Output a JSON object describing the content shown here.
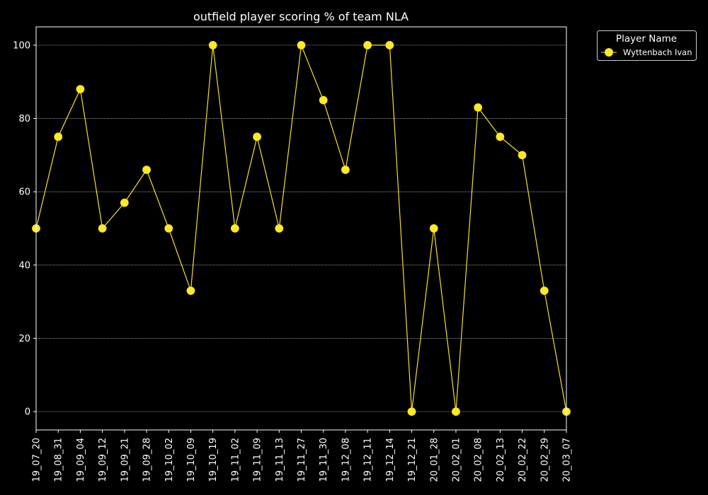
{
  "chart_data": {
    "type": "line",
    "title": "outfield player scoring % of team NLA",
    "xlabel": "",
    "ylabel": "",
    "categories": [
      "19_07_20",
      "19_08_31",
      "19_09_04",
      "19_09_12",
      "19_09_21",
      "19_09_28",
      "19_10_02",
      "19_10_09",
      "19_10_19",
      "19_11_02",
      "19_11_09",
      "19_11_13",
      "19_11_27",
      "19_11_30",
      "19_12_08",
      "19_12_11",
      "19_12_14",
      "19_12_21",
      "20_01_28",
      "20_02_01",
      "20_02_08",
      "20_02_13",
      "20_02_22",
      "20_02_29",
      "20_03_07"
    ],
    "series": [
      {
        "name": "Wyttenbach Ivan",
        "values": [
          50,
          75,
          88,
          50,
          57,
          66,
          50,
          33,
          100,
          50,
          75,
          50,
          100,
          85,
          66,
          100,
          100,
          0,
          50,
          0,
          83,
          75,
          70,
          33,
          0
        ]
      }
    ],
    "ylim": [
      -5,
      105
    ],
    "yticks": [
      0,
      20,
      40,
      60,
      80,
      100
    ],
    "grid": true,
    "legend": {
      "title": "Player Name",
      "position": "upper-right-outside"
    },
    "colors": {
      "background": "#000000",
      "axes": "#ffffff",
      "grid": "#aaaaaa",
      "line": "#f5e030",
      "marker": "#ffea1f",
      "text": "#ffffff"
    }
  }
}
